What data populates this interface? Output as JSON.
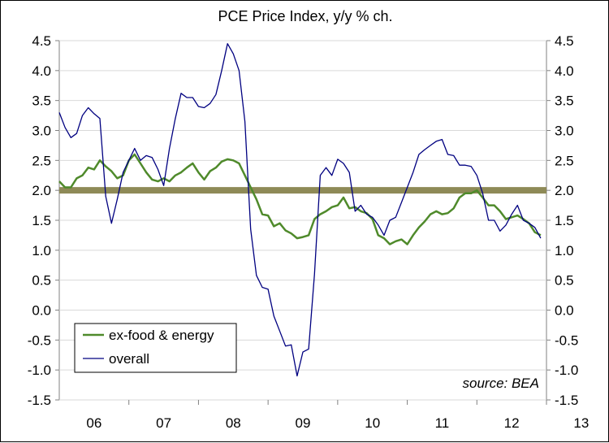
{
  "chart_data": {
    "type": "line",
    "title": "PCE Price Index, y/y % ch.",
    "source": "source: BEA",
    "ylim": [
      -1.5,
      4.5
    ],
    "yticks": [
      "4.5",
      "4.0",
      "3.5",
      "3.0",
      "2.5",
      "2.0",
      "1.5",
      "1.0",
      "0.5",
      "0.0",
      "-0.5",
      "-1.0",
      "-1.5"
    ],
    "xlim": [
      2006.0,
      2013.0
    ],
    "xlabels": [
      "06",
      "07",
      "08",
      "09",
      "10",
      "11",
      "12",
      "13"
    ],
    "grid": true,
    "legend_position": "bottom-left",
    "reference_line": {
      "y": 2.0,
      "color": "#8E8A57"
    },
    "series": [
      {
        "name": "ex-food & energy",
        "color": "#4F8A2B",
        "x": [
          2006.0,
          2006.083,
          2006.167,
          2006.25,
          2006.333,
          2006.417,
          2006.5,
          2006.583,
          2006.667,
          2006.75,
          2006.833,
          2006.917,
          2007.0,
          2007.083,
          2007.167,
          2007.25,
          2007.333,
          2007.417,
          2007.5,
          2007.583,
          2007.667,
          2007.75,
          2007.833,
          2007.917,
          2008.0,
          2008.083,
          2008.167,
          2008.25,
          2008.333,
          2008.417,
          2008.5,
          2008.583,
          2008.667,
          2008.75,
          2008.833,
          2008.917,
          2009.0,
          2009.083,
          2009.167,
          2009.25,
          2009.333,
          2009.417,
          2009.5,
          2009.583,
          2009.667,
          2009.75,
          2009.833,
          2009.917,
          2010.0,
          2010.083,
          2010.167,
          2010.25,
          2010.333,
          2010.417,
          2010.5,
          2010.583,
          2010.667,
          2010.75,
          2010.833,
          2010.917,
          2011.0,
          2011.083,
          2011.167,
          2011.25,
          2011.333,
          2011.417,
          2011.5,
          2011.583,
          2011.667,
          2011.75,
          2011.833,
          2011.917,
          2012.0,
          2012.083,
          2012.167,
          2012.25,
          2012.333,
          2012.417,
          2012.5,
          2012.583,
          2012.667,
          2012.75,
          2012.833,
          2012.917
        ],
        "y": [
          2.15,
          2.05,
          2.05,
          2.2,
          2.25,
          2.38,
          2.35,
          2.5,
          2.4,
          2.32,
          2.2,
          2.25,
          2.5,
          2.6,
          2.45,
          2.3,
          2.18,
          2.15,
          2.2,
          2.15,
          2.25,
          2.3,
          2.38,
          2.45,
          2.3,
          2.18,
          2.32,
          2.38,
          2.48,
          2.52,
          2.5,
          2.45,
          2.25,
          2.05,
          1.85,
          1.6,
          1.58,
          1.4,
          1.45,
          1.33,
          1.28,
          1.2,
          1.22,
          1.25,
          1.52,
          1.6,
          1.65,
          1.72,
          1.75,
          1.88,
          1.7,
          1.72,
          1.65,
          1.62,
          1.52,
          1.25,
          1.2,
          1.1,
          1.15,
          1.18,
          1.1,
          1.25,
          1.38,
          1.48,
          1.6,
          1.65,
          1.6,
          1.62,
          1.7,
          1.88,
          1.95,
          1.95,
          2.0,
          1.88,
          1.75,
          1.75,
          1.65,
          1.52,
          1.55,
          1.58,
          1.52,
          1.45,
          1.3,
          1.25
        ]
      },
      {
        "name": "overall",
        "color": "#000080",
        "x": [
          2006.0,
          2006.083,
          2006.167,
          2006.25,
          2006.333,
          2006.417,
          2006.5,
          2006.583,
          2006.667,
          2006.75,
          2006.833,
          2006.917,
          2007.0,
          2007.083,
          2007.167,
          2007.25,
          2007.333,
          2007.417,
          2007.5,
          2007.583,
          2007.667,
          2007.75,
          2007.833,
          2007.917,
          2008.0,
          2008.083,
          2008.167,
          2008.25,
          2008.333,
          2008.417,
          2008.5,
          2008.583,
          2008.667,
          2008.75,
          2008.833,
          2008.917,
          2009.0,
          2009.083,
          2009.167,
          2009.25,
          2009.333,
          2009.417,
          2009.5,
          2009.583,
          2009.667,
          2009.75,
          2009.833,
          2009.917,
          2010.0,
          2010.083,
          2010.167,
          2010.25,
          2010.333,
          2010.417,
          2010.5,
          2010.583,
          2010.667,
          2010.75,
          2010.833,
          2010.917,
          2011.0,
          2011.083,
          2011.167,
          2011.25,
          2011.333,
          2011.417,
          2011.5,
          2011.583,
          2011.667,
          2011.75,
          2011.833,
          2011.917,
          2012.0,
          2012.083,
          2012.167,
          2012.25,
          2012.333,
          2012.417,
          2012.5,
          2012.583,
          2012.667,
          2012.75,
          2012.833,
          2012.917
        ],
        "y": [
          3.3,
          3.05,
          2.88,
          2.95,
          3.25,
          3.38,
          3.28,
          3.2,
          1.9,
          1.45,
          1.85,
          2.3,
          2.5,
          2.7,
          2.5,
          2.58,
          2.55,
          2.35,
          2.08,
          2.7,
          3.2,
          3.62,
          3.55,
          3.55,
          3.4,
          3.38,
          3.45,
          3.6,
          4.0,
          4.45,
          4.28,
          4.0,
          3.15,
          1.35,
          0.58,
          0.38,
          0.35,
          -0.1,
          -0.35,
          -0.6,
          -0.58,
          -1.1,
          -0.7,
          -0.65,
          0.6,
          2.25,
          2.38,
          2.25,
          2.52,
          2.45,
          2.3,
          1.65,
          1.75,
          1.6,
          1.55,
          1.42,
          1.25,
          1.5,
          1.55,
          1.8,
          2.05,
          2.3,
          2.6,
          2.68,
          2.75,
          2.82,
          2.85,
          2.6,
          2.58,
          2.42,
          2.42,
          2.4,
          2.25,
          1.95,
          1.5,
          1.5,
          1.32,
          1.42,
          1.6,
          1.75,
          1.5,
          1.45,
          1.38,
          1.2
        ]
      }
    ]
  }
}
